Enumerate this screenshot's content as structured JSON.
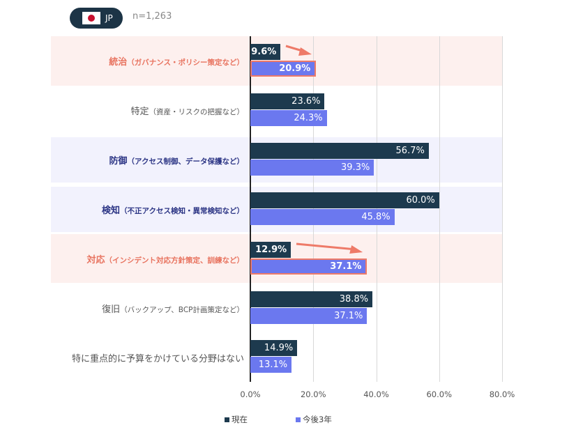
{
  "badge": {
    "country": "JP",
    "icon": "japan-flag-icon"
  },
  "sample": "n=1,263",
  "chart_data": {
    "type": "bar",
    "orientation": "horizontal",
    "categories": [
      {
        "main": "統治",
        "sub": "（ガバナンス・ポリシー策定など）",
        "style": "highlight-pink"
      },
      {
        "main": "特定",
        "sub": "（資産・リスクの把握など）",
        "style": "normal"
      },
      {
        "main": "防御",
        "sub": "（アクセス制御、データ保護など）",
        "style": "highlight-lavender"
      },
      {
        "main": "検知",
        "sub": "（不正アクセス検知・異常検知など）",
        "style": "highlight-lavender"
      },
      {
        "main": "対応",
        "sub": "（インシデント対応方針策定、訓練など）",
        "style": "highlight-pink"
      },
      {
        "main": "復旧",
        "sub": "（バックアップ、BCP計画策定など）",
        "style": "normal"
      },
      {
        "main": "特に重点的に予算をかけている分野はない",
        "sub": "",
        "style": "normal"
      }
    ],
    "series": [
      {
        "name": "現在",
        "color": "#1d3a4e",
        "values": [
          9.6,
          23.6,
          56.7,
          60.0,
          12.9,
          38.8,
          14.9
        ],
        "labels": [
          "9.6%",
          "23.6%",
          "56.7%",
          "60.0%",
          "12.9%",
          "38.8%",
          "14.9%"
        ]
      },
      {
        "name": "今後3年",
        "color": "#6b78ef",
        "values": [
          20.9,
          24.3,
          39.3,
          45.8,
          37.1,
          37.1,
          13.1
        ],
        "labels": [
          "20.9%",
          "24.3%",
          "39.3%",
          "45.8%",
          "37.1%",
          "37.1%",
          "13.1%"
        ]
      }
    ],
    "highlighted_rows": [
      0,
      4
    ],
    "xlim": [
      0,
      80
    ],
    "xticks": [
      "0.0%",
      "20.0%",
      "40.0%",
      "60.0%",
      "80.0%"
    ],
    "grid": true,
    "legend": "bottom",
    "colors": {
      "pink_band": "#fdf0ee",
      "lavender_band": "#f2f2fd",
      "pink_text": "#e8735f",
      "navy_text": "#2c3585",
      "gray_text": "#555555",
      "accent": "#ee7a68"
    }
  }
}
